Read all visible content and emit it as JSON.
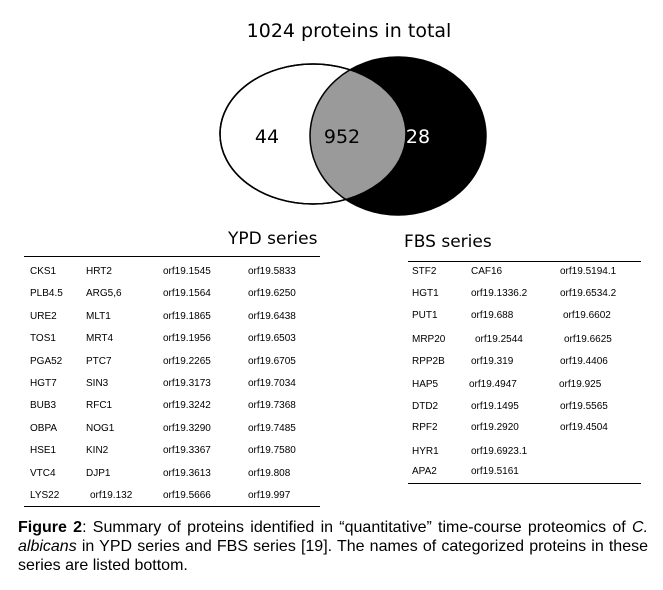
{
  "venn": {
    "title": "1024 proteins in total",
    "left_only": "44",
    "overlap": "952",
    "right_only": "28",
    "colors": {
      "overlap": "#9a9a9a",
      "right": "#000000",
      "left": "#ffffff"
    }
  },
  "ypd": {
    "title": "YPD series",
    "rows": [
      [
        "CKS1",
        "HRT2",
        "orf19.1545",
        "orf19.5833"
      ],
      [
        "PLB4.5",
        "ARG5,6",
        "orf19.1564",
        "orf19.6250"
      ],
      [
        "URE2",
        "MLT1",
        "orf19.1865",
        "orf19.6438"
      ],
      [
        "TOS1",
        "MRT4",
        "orf19.1956",
        "orf19.6503"
      ],
      [
        "PGA52",
        "PTC7",
        "orf19.2265",
        "orf19.6705"
      ],
      [
        "HGT7",
        "SIN3",
        "orf19.3173",
        "orf19.7034"
      ],
      [
        "BUB3",
        "RFC1",
        "orf19.3242",
        "orf19.7368"
      ],
      [
        "OBPA",
        "NOG1",
        "orf19.3290",
        "orf19.7485"
      ],
      [
        "HSE1",
        "KIN2",
        "orf19.3367",
        "orf19.7580"
      ],
      [
        "VTC4",
        "DJP1",
        "orf19.3613",
        "orf19.808"
      ],
      [
        "LYS22",
        "orf19.132",
        "orf19.5666",
        "orf19.997"
      ]
    ]
  },
  "fbs": {
    "title": "FBS series",
    "rows": [
      [
        "STF2",
        "CAF16",
        "orf19.5194.1"
      ],
      [
        "HGT1",
        "orf19.1336.2",
        "orf19.6534.2"
      ],
      [
        "PUT1",
        "orf19.688",
        "orf19.6602"
      ],
      [
        "MRP20",
        "orf19.2544",
        "orf19.6625"
      ],
      [
        "RPP2B",
        "orf19.319",
        "orf19.4406"
      ],
      [
        "HAP5",
        "orf19.4947",
        "orf19.925"
      ],
      [
        "DTD2",
        "orf19.1495",
        "orf19.5565"
      ],
      [
        "RPF2",
        "orf19.2920",
        "orf19.4504"
      ],
      [
        "HYR1",
        "orf19.6923.1",
        ""
      ],
      [
        "APA2",
        "orf19.5161",
        ""
      ]
    ]
  },
  "caption": {
    "label": "Figure 2",
    "text1": ": Summary of proteins identified in “quantitative” time-course proteomics of ",
    "species": "C. albicans",
    "text2": " in YPD series and FBS series [19]. The names of categorized proteins in these series are listed bottom."
  }
}
